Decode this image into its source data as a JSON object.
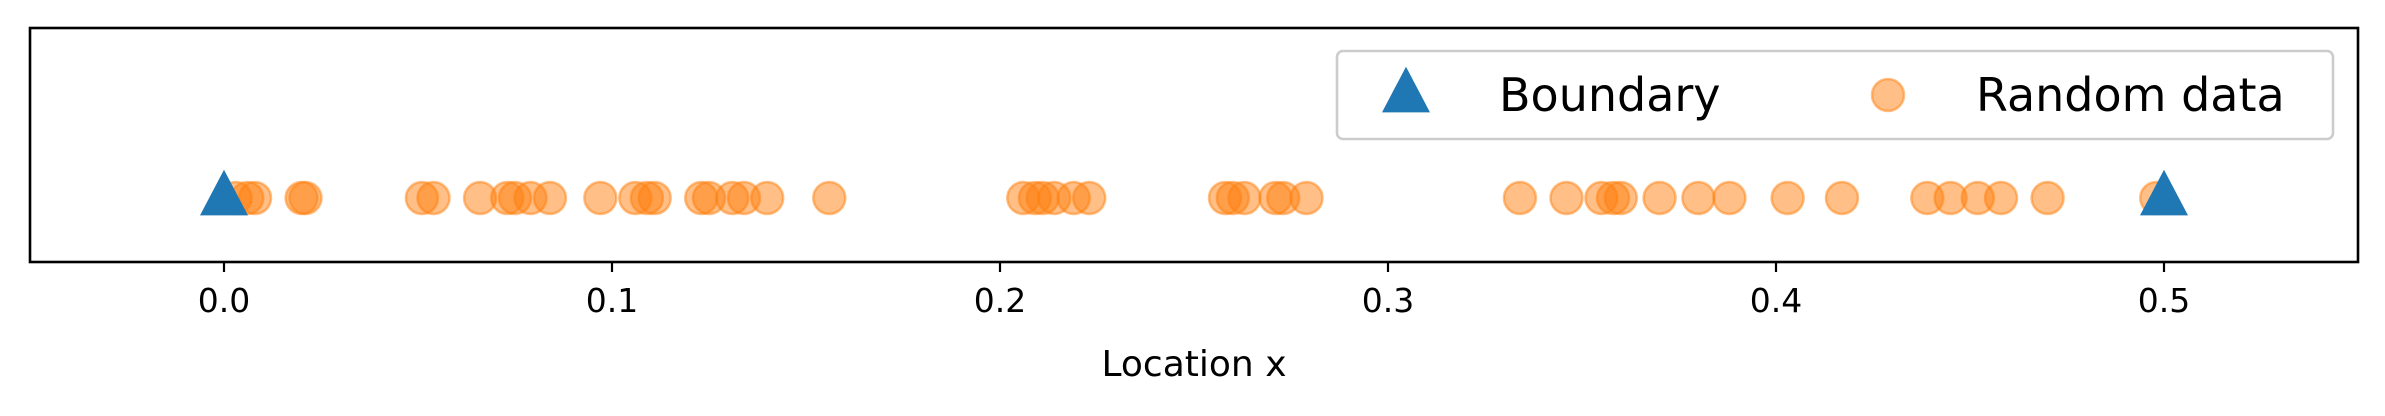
{
  "chart_data": {
    "type": "scatter",
    "title": "",
    "xlabel": "Location x",
    "ylabel": "",
    "xlim": [
      -0.05,
      0.55
    ],
    "ylim": [
      -1,
      1
    ],
    "xticks": [
      0.0,
      0.1,
      0.2,
      0.3,
      0.4,
      0.5
    ],
    "xtick_labels": [
      "0.0",
      "0.1",
      "0.2",
      "0.3",
      "0.4",
      "0.5"
    ],
    "yticks": [],
    "grid": false,
    "legend": {
      "placement": "upper-right",
      "columns": 2
    },
    "series": [
      {
        "name": "Boundary",
        "marker": "triangle",
        "color": "#1f77b4",
        "points": [
          {
            "x": 0.0,
            "y": 0
          },
          {
            "x": 0.5,
            "y": 0
          }
        ]
      },
      {
        "name": "Random data",
        "marker": "circle",
        "color": "#ff7f0e",
        "alpha": 0.5,
        "points": [
          {
            "x": 0.003,
            "y": 0
          },
          {
            "x": 0.006,
            "y": 0
          },
          {
            "x": 0.008,
            "y": 0
          },
          {
            "x": 0.02,
            "y": 0
          },
          {
            "x": 0.021,
            "y": 0
          },
          {
            "x": 0.051,
            "y": 0
          },
          {
            "x": 0.054,
            "y": 0
          },
          {
            "x": 0.066,
            "y": 0
          },
          {
            "x": 0.073,
            "y": 0
          },
          {
            "x": 0.075,
            "y": 0
          },
          {
            "x": 0.079,
            "y": 0
          },
          {
            "x": 0.084,
            "y": 0
          },
          {
            "x": 0.097,
            "y": 0
          },
          {
            "x": 0.106,
            "y": 0
          },
          {
            "x": 0.109,
            "y": 0
          },
          {
            "x": 0.111,
            "y": 0
          },
          {
            "x": 0.123,
            "y": 0
          },
          {
            "x": 0.125,
            "y": 0
          },
          {
            "x": 0.131,
            "y": 0
          },
          {
            "x": 0.134,
            "y": 0
          },
          {
            "x": 0.14,
            "y": 0
          },
          {
            "x": 0.156,
            "y": 0
          },
          {
            "x": 0.206,
            "y": 0
          },
          {
            "x": 0.209,
            "y": 0
          },
          {
            "x": 0.211,
            "y": 0
          },
          {
            "x": 0.214,
            "y": 0
          },
          {
            "x": 0.219,
            "y": 0
          },
          {
            "x": 0.223,
            "y": 0
          },
          {
            "x": 0.258,
            "y": 0
          },
          {
            "x": 0.26,
            "y": 0
          },
          {
            "x": 0.263,
            "y": 0
          },
          {
            "x": 0.271,
            "y": 0
          },
          {
            "x": 0.273,
            "y": 0
          },
          {
            "x": 0.279,
            "y": 0
          },
          {
            "x": 0.334,
            "y": 0
          },
          {
            "x": 0.346,
            "y": 0
          },
          {
            "x": 0.355,
            "y": 0
          },
          {
            "x": 0.358,
            "y": 0
          },
          {
            "x": 0.36,
            "y": 0
          },
          {
            "x": 0.37,
            "y": 0
          },
          {
            "x": 0.38,
            "y": 0
          },
          {
            "x": 0.388,
            "y": 0
          },
          {
            "x": 0.403,
            "y": 0
          },
          {
            "x": 0.417,
            "y": 0
          },
          {
            "x": 0.439,
            "y": 0
          },
          {
            "x": 0.445,
            "y": 0
          },
          {
            "x": 0.452,
            "y": 0
          },
          {
            "x": 0.458,
            "y": 0
          },
          {
            "x": 0.47,
            "y": 0
          },
          {
            "x": 0.498,
            "y": 0
          }
        ]
      }
    ]
  }
}
